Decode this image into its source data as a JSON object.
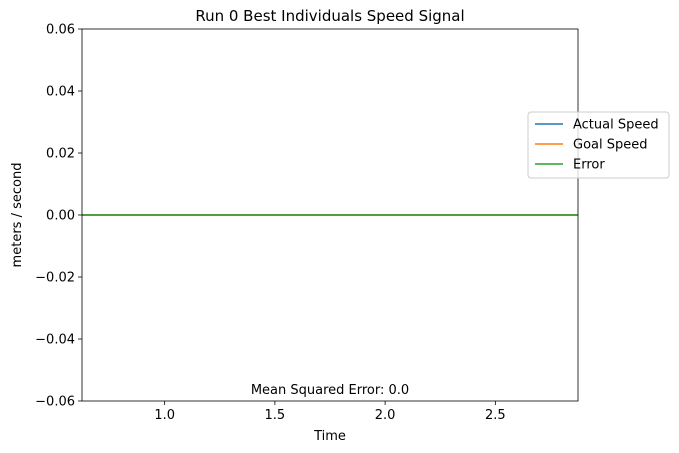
{
  "chart_data": {
    "type": "line",
    "title": "Run 0 Best Individuals Speed Signal",
    "xlabel": "Time",
    "ylabel": "meters / second",
    "xlim": [
      0.625,
      2.875
    ],
    "ylim": [
      -0.06,
      0.06
    ],
    "x_ticks": [
      1.0,
      1.5,
      2.0,
      2.5
    ],
    "x_tick_labels": [
      "1.0",
      "1.5",
      "2.0",
      "2.5"
    ],
    "y_ticks": [
      0.06,
      0.04,
      0.02,
      0.0,
      -0.02,
      -0.04,
      -0.06
    ],
    "y_tick_labels": [
      "0.06",
      "0.04",
      "0.02",
      "0.00",
      "−0.02",
      "−0.04",
      "−0.06"
    ],
    "x": [
      0.625,
      2.875
    ],
    "series": [
      {
        "name": "Actual Speed",
        "color": "#1f77b4",
        "values": [
          0.0,
          0.0
        ]
      },
      {
        "name": "Goal Speed",
        "color": "#ff7f0e",
        "values": [
          0.0,
          0.0
        ]
      },
      {
        "name": "Error",
        "color": "#2ca02c",
        "values": [
          0.0,
          0.0
        ]
      }
    ],
    "annotation": "Mean Squared Error: 0.0",
    "legend_position": "right",
    "grid": false
  }
}
